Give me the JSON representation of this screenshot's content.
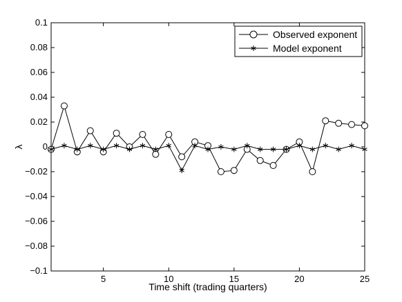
{
  "chart_data": {
    "type": "line",
    "title": "",
    "xlabel": "Time shift (trading quarters)",
    "ylabel": "λ",
    "xlim": [
      1,
      25
    ],
    "ylim": [
      -0.1,
      0.1
    ],
    "xticks": [
      5,
      10,
      15,
      20,
      25
    ],
    "xtick_labels": [
      "5",
      "10",
      "15",
      "20",
      "25"
    ],
    "yticks": [
      -0.1,
      -0.08,
      -0.06,
      -0.04,
      -0.02,
      0,
      0.02,
      0.04,
      0.06,
      0.08,
      0.1
    ],
    "ytick_labels": [
      "−0.1",
      "−0.08",
      "−0.06",
      "−0.04",
      "−0.02",
      "0",
      "0.02",
      "0.04",
      "0.06",
      "0.08",
      "0.1"
    ],
    "grid": false,
    "legend_position": "top-right",
    "colors": {
      "line": "#000000",
      "axes": "#000000",
      "background": "#ffffff"
    },
    "x": [
      1,
      2,
      3,
      4,
      5,
      6,
      7,
      8,
      9,
      10,
      11,
      12,
      13,
      14,
      15,
      16,
      17,
      18,
      19,
      20,
      21,
      22,
      23,
      24,
      25
    ],
    "series": [
      {
        "name": "Observed exponent",
        "marker": "circle",
        "values": [
          -0.002,
          0.033,
          -0.004,
          0.013,
          -0.004,
          0.011,
          0.0,
          0.01,
          -0.006,
          0.01,
          -0.008,
          0.004,
          0.001,
          -0.02,
          -0.019,
          -0.002,
          -0.011,
          -0.015,
          -0.002,
          0.004,
          -0.02,
          0.021,
          0.019,
          0.018,
          0.017
        ]
      },
      {
        "name": "Model exponent",
        "marker": "asterisk",
        "values": [
          -0.002,
          0.001,
          -0.002,
          0.001,
          -0.002,
          0.001,
          -0.002,
          0.001,
          -0.002,
          0.001,
          -0.019,
          0.001,
          -0.002,
          0.0,
          -0.002,
          0.001,
          -0.002,
          -0.002,
          -0.002,
          0.001,
          -0.002,
          0.001,
          -0.002,
          0.001,
          -0.002
        ]
      }
    ]
  }
}
